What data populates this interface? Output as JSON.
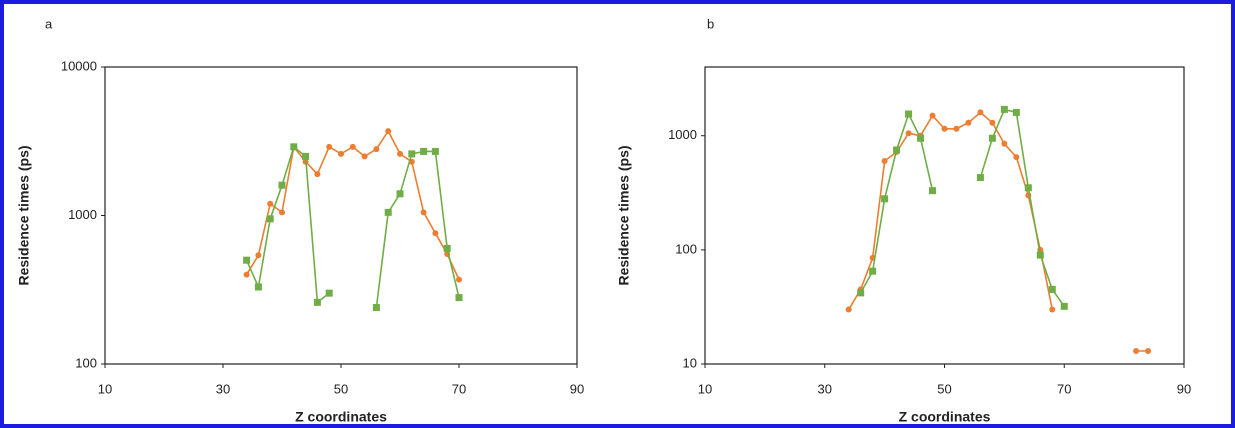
{
  "chart_data": [
    {
      "type": "line",
      "label": "a",
      "xlabel": "Z coordinates",
      "ylabel": "Residence times (ps)",
      "x": [
        34,
        36,
        38,
        40,
        42,
        44,
        46,
        48,
        50,
        52,
        54,
        56,
        58,
        60,
        62,
        64,
        66,
        68,
        70
      ],
      "series": [
        {
          "color": "#ed7d31",
          "marker": "circle",
          "values": [
            400,
            540,
            1200,
            1050,
            2900,
            2300,
            1900,
            2900,
            2600,
            2900,
            2500,
            2800,
            3700,
            2600,
            2300,
            1050,
            760,
            550,
            370
          ]
        },
        {
          "color": "#70ad47",
          "marker": "square",
          "values": [
            500,
            330,
            950,
            1600,
            2900,
            2500,
            260,
            300,
            null,
            null,
            null,
            240,
            1050,
            1400,
            2600,
            2700,
            2700,
            600,
            280
          ]
        }
      ],
      "xlim": [
        10,
        90
      ],
      "xticks": [
        10,
        30,
        50,
        70,
        90
      ],
      "ylim": [
        100,
        10000
      ],
      "yticks": [
        100,
        1000,
        10000
      ],
      "ylog": true
    },
    {
      "type": "line",
      "label": "b",
      "xlabel": "Z coordinates",
      "ylabel": "Residence times (ps)",
      "x": [
        34,
        36,
        38,
        40,
        42,
        44,
        46,
        48,
        50,
        52,
        54,
        56,
        58,
        60,
        62,
        64,
        66,
        68,
        70,
        82,
        84
      ],
      "series": [
        {
          "color": "#ed7d31",
          "marker": "circle",
          "values": [
            30,
            45,
            85,
            600,
            720,
            1050,
            1000,
            1500,
            1150,
            1150,
            1300,
            1600,
            1300,
            850,
            650,
            300,
            100,
            30,
            null,
            13,
            13
          ]
        },
        {
          "color": "#70ad47",
          "marker": "square",
          "values": [
            null,
            42,
            65,
            280,
            750,
            1550,
            950,
            330,
            null,
            null,
            null,
            430,
            950,
            1700,
            1600,
            350,
            90,
            45,
            32,
            null,
            null
          ]
        }
      ],
      "xlim": [
        10,
        90
      ],
      "xticks": [
        10,
        30,
        50,
        70,
        90
      ],
      "ylim": [
        10,
        4000
      ],
      "yticks": [
        10,
        100,
        1000
      ],
      "ylog": true
    }
  ]
}
